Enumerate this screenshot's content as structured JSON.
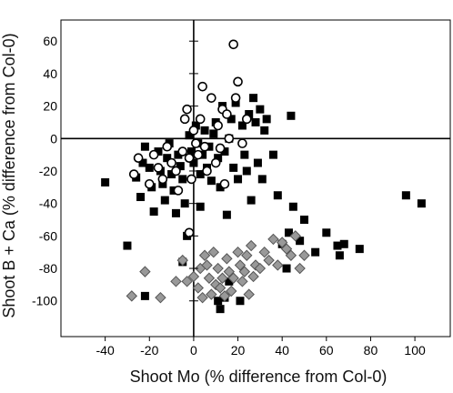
{
  "chart_data": {
    "type": "scatter",
    "xlabel": "Shoot Mo (% difference from Col-0)",
    "ylabel": "Shoot B + Ca (% difference from Col-0)",
    "xlim": [
      -60,
      116
    ],
    "ylim": [
      -122,
      73
    ],
    "x_ticks": [
      -40,
      -20,
      0,
      20,
      40,
      60,
      80,
      100
    ],
    "y_ticks": [
      60,
      40,
      20,
      0,
      -20,
      -40,
      -60,
      -80,
      -100
    ],
    "grid": false,
    "legend": "none",
    "series": [
      {
        "marker": "filled-square",
        "color": "#000000",
        "points": [
          [
            -40,
            -27
          ],
          [
            -30,
            -66
          ],
          [
            -26,
            -24
          ],
          [
            -24,
            -36
          ],
          [
            -23,
            -15
          ],
          [
            -22,
            -5
          ],
          [
            -20,
            -18
          ],
          [
            -19,
            -30
          ],
          [
            -18,
            -45
          ],
          [
            -16,
            -8
          ],
          [
            -15,
            -20
          ],
          [
            -14,
            -28
          ],
          [
            -13,
            -38
          ],
          [
            -12,
            -12
          ],
          [
            -11,
            -3
          ],
          [
            -10,
            -22
          ],
          [
            -9,
            -32
          ],
          [
            -8,
            -46
          ],
          [
            -7,
            -10
          ],
          [
            -6,
            -17
          ],
          [
            -5,
            -25
          ],
          [
            -4,
            -40
          ],
          [
            -3,
            -60
          ],
          [
            -2,
            2
          ],
          [
            -1,
            -8
          ],
          [
            0,
            -15
          ],
          [
            1,
            8
          ],
          [
            2,
            -3
          ],
          [
            3,
            -22
          ],
          [
            3,
            -42
          ],
          [
            4,
            -10
          ],
          [
            5,
            5
          ],
          [
            6,
            -18
          ],
          [
            7,
            -5
          ],
          [
            8,
            -26
          ],
          [
            9,
            3
          ],
          [
            10,
            10
          ],
          [
            11,
            -12
          ],
          [
            11,
            -100
          ],
          [
            12,
            -30
          ],
          [
            13,
            20
          ],
          [
            14,
            -8
          ],
          [
            15,
            -47
          ],
          [
            16,
            0
          ],
          [
            17,
            12
          ],
          [
            18,
            -18
          ],
          [
            19,
            22
          ],
          [
            20,
            -25
          ],
          [
            21,
            -100
          ],
          [
            22,
            8
          ],
          [
            23,
            -10
          ],
          [
            24,
            -20
          ],
          [
            25,
            15
          ],
          [
            26,
            -38
          ],
          [
            27,
            25
          ],
          [
            28,
            10
          ],
          [
            29,
            -15
          ],
          [
            30,
            18
          ],
          [
            31,
            -25
          ],
          [
            32,
            5
          ],
          [
            33,
            12
          ],
          [
            36,
            -10
          ],
          [
            38,
            -35
          ],
          [
            40,
            -65
          ],
          [
            42,
            -80
          ],
          [
            43,
            -58
          ],
          [
            44,
            14
          ],
          [
            45,
            -42
          ],
          [
            48,
            -63
          ],
          [
            50,
            -50
          ],
          [
            55,
            -70
          ],
          [
            60,
            -58
          ],
          [
            65,
            -66
          ],
          [
            66,
            -72
          ],
          [
            68,
            -65
          ],
          [
            75,
            -68
          ],
          [
            96,
            -35
          ],
          [
            103,
            -40
          ],
          [
            -22,
            -97
          ],
          [
            -5,
            -76
          ],
          [
            12,
            -105
          ],
          [
            14,
            -98
          ],
          [
            16,
            -88
          ]
        ]
      },
      {
        "marker": "open-circle",
        "color": "#000000",
        "points": [
          [
            -27,
            -22
          ],
          [
            -25,
            -12
          ],
          [
            -20,
            -28
          ],
          [
            -18,
            -10
          ],
          [
            -16,
            -18
          ],
          [
            -14,
            -25
          ],
          [
            -12,
            -5
          ],
          [
            -10,
            -15
          ],
          [
            -8,
            -20
          ],
          [
            -7,
            -32
          ],
          [
            -5,
            -8
          ],
          [
            -4,
            12
          ],
          [
            -3,
            18
          ],
          [
            -2,
            -12
          ],
          [
            -1,
            -25
          ],
          [
            0,
            5
          ],
          [
            1,
            -3
          ],
          [
            2,
            -10
          ],
          [
            3,
            12
          ],
          [
            4,
            32
          ],
          [
            5,
            -5
          ],
          [
            6,
            -20
          ],
          [
            8,
            25
          ],
          [
            10,
            -15
          ],
          [
            11,
            8
          ],
          [
            12,
            -6
          ],
          [
            13,
            18
          ],
          [
            14,
            -28
          ],
          [
            15,
            15
          ],
          [
            16,
            0
          ],
          [
            18,
            58
          ],
          [
            19,
            25
          ],
          [
            20,
            35
          ],
          [
            22,
            -3
          ],
          [
            24,
            12
          ],
          [
            -2,
            -58
          ]
        ]
      },
      {
        "marker": "gray-diamond",
        "color": "#999999",
        "points": [
          [
            -28,
            -97
          ],
          [
            -22,
            -82
          ],
          [
            -15,
            -98
          ],
          [
            -8,
            -88
          ],
          [
            -5,
            -75
          ],
          [
            -3,
            -88
          ],
          [
            0,
            -85
          ],
          [
            2,
            -92
          ],
          [
            3,
            -80
          ],
          [
            4,
            -98
          ],
          [
            5,
            -72
          ],
          [
            6,
            -78
          ],
          [
            7,
            -86
          ],
          [
            8,
            -96
          ],
          [
            9,
            -70
          ],
          [
            10,
            -90
          ],
          [
            11,
            -80
          ],
          [
            12,
            -92
          ],
          [
            13,
            -86
          ],
          [
            14,
            -97
          ],
          [
            15,
            -74
          ],
          [
            16,
            -82
          ],
          [
            17,
            -94
          ],
          [
            18,
            -86
          ],
          [
            20,
            -70
          ],
          [
            21,
            -78
          ],
          [
            22,
            -88
          ],
          [
            23,
            -82
          ],
          [
            24,
            -72
          ],
          [
            25,
            -96
          ],
          [
            26,
            -66
          ],
          [
            27,
            -85
          ],
          [
            28,
            -78
          ],
          [
            30,
            -80
          ],
          [
            32,
            -70
          ],
          [
            34,
            -75
          ],
          [
            36,
            -62
          ],
          [
            38,
            -78
          ],
          [
            40,
            -64
          ],
          [
            42,
            -68
          ],
          [
            44,
            -72
          ],
          [
            46,
            -60
          ],
          [
            48,
            -80
          ],
          [
            50,
            -72
          ]
        ]
      }
    ]
  }
}
